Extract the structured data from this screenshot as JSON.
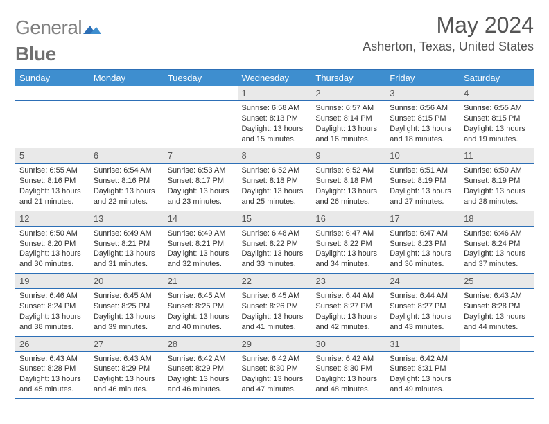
{
  "logo": {
    "text1": "General",
    "text2": "Blue"
  },
  "title": "May 2024",
  "location": "Asherton, Texas, United States",
  "colors": {
    "header_bg": "#3e8ecf",
    "rule": "#2d6fb6",
    "daynum_bg": "#e9e9e9",
    "text_gray": "#545454"
  },
  "fonts": {
    "title_size": 32,
    "location_size": 18,
    "header_size": 13,
    "cell_size": 11
  },
  "weekdays": [
    "Sunday",
    "Monday",
    "Tuesday",
    "Wednesday",
    "Thursday",
    "Friday",
    "Saturday"
  ],
  "weeks": [
    [
      null,
      null,
      null,
      {
        "d": "1",
        "sr": "6:58 AM",
        "ss": "8:13 PM",
        "dl": "13 hours and 15 minutes."
      },
      {
        "d": "2",
        "sr": "6:57 AM",
        "ss": "8:14 PM",
        "dl": "13 hours and 16 minutes."
      },
      {
        "d": "3",
        "sr": "6:56 AM",
        "ss": "8:15 PM",
        "dl": "13 hours and 18 minutes."
      },
      {
        "d": "4",
        "sr": "6:55 AM",
        "ss": "8:15 PM",
        "dl": "13 hours and 19 minutes."
      }
    ],
    [
      {
        "d": "5",
        "sr": "6:55 AM",
        "ss": "8:16 PM",
        "dl": "13 hours and 21 minutes."
      },
      {
        "d": "6",
        "sr": "6:54 AM",
        "ss": "8:16 PM",
        "dl": "13 hours and 22 minutes."
      },
      {
        "d": "7",
        "sr": "6:53 AM",
        "ss": "8:17 PM",
        "dl": "13 hours and 23 minutes."
      },
      {
        "d": "8",
        "sr": "6:52 AM",
        "ss": "8:18 PM",
        "dl": "13 hours and 25 minutes."
      },
      {
        "d": "9",
        "sr": "6:52 AM",
        "ss": "8:18 PM",
        "dl": "13 hours and 26 minutes."
      },
      {
        "d": "10",
        "sr": "6:51 AM",
        "ss": "8:19 PM",
        "dl": "13 hours and 27 minutes."
      },
      {
        "d": "11",
        "sr": "6:50 AM",
        "ss": "8:19 PM",
        "dl": "13 hours and 28 minutes."
      }
    ],
    [
      {
        "d": "12",
        "sr": "6:50 AM",
        "ss": "8:20 PM",
        "dl": "13 hours and 30 minutes."
      },
      {
        "d": "13",
        "sr": "6:49 AM",
        "ss": "8:21 PM",
        "dl": "13 hours and 31 minutes."
      },
      {
        "d": "14",
        "sr": "6:49 AM",
        "ss": "8:21 PM",
        "dl": "13 hours and 32 minutes."
      },
      {
        "d": "15",
        "sr": "6:48 AM",
        "ss": "8:22 PM",
        "dl": "13 hours and 33 minutes."
      },
      {
        "d": "16",
        "sr": "6:47 AM",
        "ss": "8:22 PM",
        "dl": "13 hours and 34 minutes."
      },
      {
        "d": "17",
        "sr": "6:47 AM",
        "ss": "8:23 PM",
        "dl": "13 hours and 36 minutes."
      },
      {
        "d": "18",
        "sr": "6:46 AM",
        "ss": "8:24 PM",
        "dl": "13 hours and 37 minutes."
      }
    ],
    [
      {
        "d": "19",
        "sr": "6:46 AM",
        "ss": "8:24 PM",
        "dl": "13 hours and 38 minutes."
      },
      {
        "d": "20",
        "sr": "6:45 AM",
        "ss": "8:25 PM",
        "dl": "13 hours and 39 minutes."
      },
      {
        "d": "21",
        "sr": "6:45 AM",
        "ss": "8:25 PM",
        "dl": "13 hours and 40 minutes."
      },
      {
        "d": "22",
        "sr": "6:45 AM",
        "ss": "8:26 PM",
        "dl": "13 hours and 41 minutes."
      },
      {
        "d": "23",
        "sr": "6:44 AM",
        "ss": "8:27 PM",
        "dl": "13 hours and 42 minutes."
      },
      {
        "d": "24",
        "sr": "6:44 AM",
        "ss": "8:27 PM",
        "dl": "13 hours and 43 minutes."
      },
      {
        "d": "25",
        "sr": "6:43 AM",
        "ss": "8:28 PM",
        "dl": "13 hours and 44 minutes."
      }
    ],
    [
      {
        "d": "26",
        "sr": "6:43 AM",
        "ss": "8:28 PM",
        "dl": "13 hours and 45 minutes."
      },
      {
        "d": "27",
        "sr": "6:43 AM",
        "ss": "8:29 PM",
        "dl": "13 hours and 46 minutes."
      },
      {
        "d": "28",
        "sr": "6:42 AM",
        "ss": "8:29 PM",
        "dl": "13 hours and 46 minutes."
      },
      {
        "d": "29",
        "sr": "6:42 AM",
        "ss": "8:30 PM",
        "dl": "13 hours and 47 minutes."
      },
      {
        "d": "30",
        "sr": "6:42 AM",
        "ss": "8:30 PM",
        "dl": "13 hours and 48 minutes."
      },
      {
        "d": "31",
        "sr": "6:42 AM",
        "ss": "8:31 PM",
        "dl": "13 hours and 49 minutes."
      },
      null
    ]
  ],
  "labels": {
    "sunrise": "Sunrise:",
    "sunset": "Sunset:",
    "daylight": "Daylight:"
  }
}
